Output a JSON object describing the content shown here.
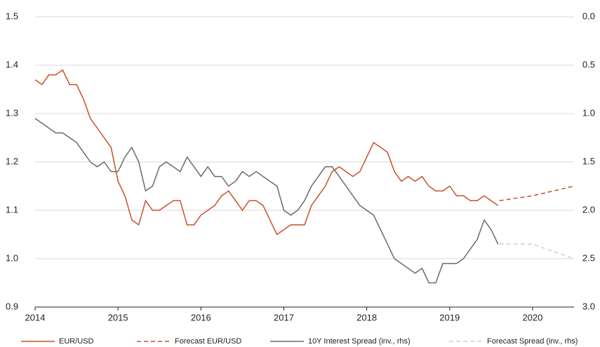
{
  "chart_data": {
    "type": "line",
    "xlim": [
      2014,
      2020.5
    ],
    "xticks": [
      2014,
      2015,
      2016,
      2017,
      2018,
      2019,
      2020
    ],
    "ylim": [
      0.9,
      1.5
    ],
    "yticks": [
      0.9,
      {
        "value": 1,
        "label": "1.0"
      },
      1.1,
      1.2,
      1.3,
      1.4,
      1.5
    ],
    "y2lim": [
      0,
      3
    ],
    "y2_inverted": true,
    "y2ticks": [
      {
        "value": 0,
        "label": "0.0"
      },
      0.5,
      {
        "value": 1,
        "label": "1.0"
      },
      1.5,
      {
        "value": 2,
        "label": "2.0"
      },
      2.5,
      {
        "value": 3,
        "label": "3.0"
      }
    ],
    "grid": true,
    "legend": "bottom",
    "series": [
      {
        "name": "EUR/USD",
        "color": "#c8502a",
        "dash": false,
        "x": [
          2014,
          2014.083,
          2014.167,
          2014.25,
          2014.333,
          2014.417,
          2014.5,
          2014.583,
          2014.667,
          2014.75,
          2014.833,
          2014.917,
          2015,
          2015.083,
          2015.167,
          2015.25,
          2015.333,
          2015.417,
          2015.5,
          2015.583,
          2015.667,
          2015.75,
          2015.833,
          2015.917,
          2016,
          2016.083,
          2016.167,
          2016.25,
          2016.333,
          2016.417,
          2016.5,
          2016.583,
          2016.667,
          2016.75,
          2016.833,
          2016.917,
          2017,
          2017.083,
          2017.167,
          2017.25,
          2017.333,
          2017.417,
          2017.5,
          2017.583,
          2017.667,
          2017.75,
          2017.833,
          2017.917,
          2018,
          2018.083,
          2018.167,
          2018.25,
          2018.333,
          2018.417,
          2018.5,
          2018.583,
          2018.667,
          2018.75,
          2018.833,
          2018.917,
          2019,
          2019.083,
          2019.167,
          2019.25,
          2019.333,
          2019.417,
          2019.5,
          2019.583
        ],
        "values": [
          1.37,
          1.36,
          1.38,
          1.38,
          1.39,
          1.36,
          1.36,
          1.33,
          1.29,
          1.27,
          1.25,
          1.23,
          1.16,
          1.13,
          1.08,
          1.07,
          1.12,
          1.1,
          1.1,
          1.11,
          1.12,
          1.12,
          1.07,
          1.07,
          1.09,
          1.1,
          1.11,
          1.13,
          1.14,
          1.12,
          1.1,
          1.12,
          1.12,
          1.11,
          1.08,
          1.05,
          1.06,
          1.07,
          1.07,
          1.07,
          1.11,
          1.13,
          1.15,
          1.18,
          1.19,
          1.18,
          1.17,
          1.18,
          1.21,
          1.24,
          1.23,
          1.22,
          1.18,
          1.16,
          1.17,
          1.16,
          1.17,
          1.15,
          1.14,
          1.14,
          1.15,
          1.13,
          1.13,
          1.12,
          1.12,
          1.13,
          1.12,
          1.11
        ]
      },
      {
        "name": "Forecast EUR/USD",
        "color": "#c8502a",
        "dash": true,
        "x": [
          2019.6,
          2020,
          2020.5
        ],
        "values": [
          1.12,
          1.13,
          1.15
        ]
      },
      {
        "name": "10Y Interest Spread (inv., rhs)",
        "color": "#6d6a65",
        "dash": false,
        "axis": "y2",
        "x": [
          2014,
          2014.083,
          2014.167,
          2014.25,
          2014.333,
          2014.417,
          2014.5,
          2014.583,
          2014.667,
          2014.75,
          2014.833,
          2014.917,
          2015,
          2015.083,
          2015.167,
          2015.25,
          2015.333,
          2015.417,
          2015.5,
          2015.583,
          2015.667,
          2015.75,
          2015.833,
          2015.917,
          2016,
          2016.083,
          2016.167,
          2016.25,
          2016.333,
          2016.417,
          2016.5,
          2016.583,
          2016.667,
          2016.75,
          2016.833,
          2016.917,
          2017,
          2017.083,
          2017.167,
          2017.25,
          2017.333,
          2017.417,
          2017.5,
          2017.583,
          2017.667,
          2017.75,
          2017.833,
          2017.917,
          2018,
          2018.083,
          2018.167,
          2018.25,
          2018.333,
          2018.417,
          2018.5,
          2018.583,
          2018.667,
          2018.75,
          2018.833,
          2018.917,
          2019,
          2019.083,
          2019.167,
          2019.25,
          2019.333,
          2019.417,
          2019.5,
          2019.583
        ],
        "values": [
          1.05,
          1.1,
          1.15,
          1.2,
          1.2,
          1.25,
          1.3,
          1.4,
          1.5,
          1.55,
          1.5,
          1.6,
          1.6,
          1.45,
          1.35,
          1.5,
          1.8,
          1.75,
          1.55,
          1.5,
          1.55,
          1.6,
          1.45,
          1.55,
          1.65,
          1.55,
          1.65,
          1.65,
          1.75,
          1.7,
          1.6,
          1.65,
          1.6,
          1.65,
          1.7,
          1.75,
          2.0,
          2.05,
          2.0,
          1.9,
          1.75,
          1.65,
          1.55,
          1.55,
          1.65,
          1.75,
          1.85,
          1.95,
          2.0,
          2.05,
          2.2,
          2.35,
          2.5,
          2.55,
          2.6,
          2.65,
          2.6,
          2.75,
          2.75,
          2.55,
          2.55,
          2.55,
          2.5,
          2.4,
          2.3,
          2.1,
          2.2,
          2.35
        ]
      },
      {
        "name": "Forecast Spread (inv., rhs)",
        "color": "#d0d0d0",
        "dash": true,
        "axis": "y2",
        "x": [
          2019.6,
          2020,
          2020.5
        ],
        "values": [
          2.35,
          2.35,
          2.5
        ]
      }
    ]
  }
}
